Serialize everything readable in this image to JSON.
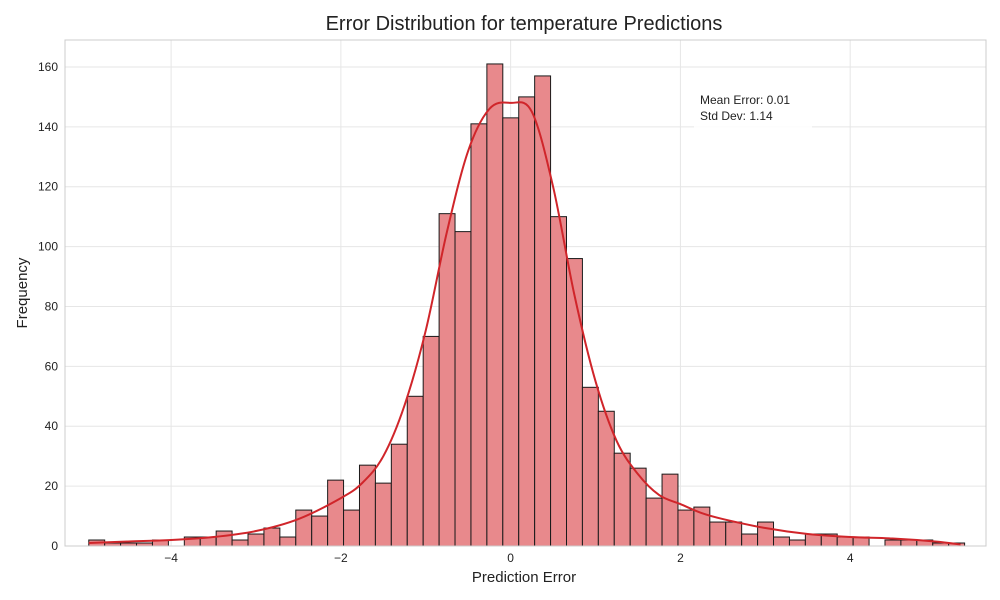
{
  "chart_data": {
    "type": "bar",
    "title": "Error Distribution for temperature Predictions",
    "xlabel": "Prediction Error",
    "ylabel": "Frequency",
    "xlim": [
      -5.25,
      5.6
    ],
    "ylim": [
      0,
      169
    ],
    "x_ticks": [
      -4,
      -2,
      0,
      2,
      4
    ],
    "x_tick_labels": [
      "−4",
      "−2",
      "0",
      "2",
      "4"
    ],
    "y_ticks": [
      0,
      20,
      40,
      60,
      80,
      100,
      120,
      140,
      160
    ],
    "y_tick_labels": [
      "0",
      "20",
      "40",
      "60",
      "80",
      "100",
      "120",
      "140",
      "160"
    ],
    "grid": true,
    "bins": {
      "start": -4.97,
      "width": 0.1876,
      "counts": [
        2,
        1,
        1,
        1,
        2,
        0,
        3,
        3,
        5,
        2,
        4,
        6,
        3,
        12,
        10,
        22,
        12,
        27,
        21,
        34,
        50,
        70,
        111,
        105,
        141,
        161,
        143,
        150,
        157,
        110,
        96,
        53,
        45,
        31,
        26,
        16,
        24,
        12,
        13,
        8,
        8,
        4,
        8,
        3,
        2,
        4,
        4,
        3,
        3,
        0,
        2,
        2,
        2,
        1,
        1
      ]
    },
    "kde": {
      "color": "#d0252a",
      "x": [
        -4.97,
        -4.5,
        -4.0,
        -3.5,
        -3.0,
        -2.5,
        -2.0,
        -1.75,
        -1.5,
        -1.25,
        -1.0,
        -0.75,
        -0.5,
        -0.25,
        0.0,
        0.25,
        0.5,
        0.75,
        1.0,
        1.25,
        1.5,
        1.75,
        2.0,
        2.25,
        2.5,
        3.0,
        3.5,
        4.0,
        4.5,
        5.0,
        5.3
      ],
      "y": [
        1,
        1.5,
        2,
        3,
        5,
        9,
        16,
        21,
        30,
        47,
        72,
        105,
        132,
        146,
        148,
        145,
        120,
        84,
        55,
        35,
        24,
        17,
        14,
        11,
        9,
        6,
        4,
        3,
        2.5,
        1.5,
        0.5
      ]
    },
    "annotation": {
      "lines": [
        "Mean Error: 0.01",
        "Std Dev: 1.14"
      ]
    }
  }
}
